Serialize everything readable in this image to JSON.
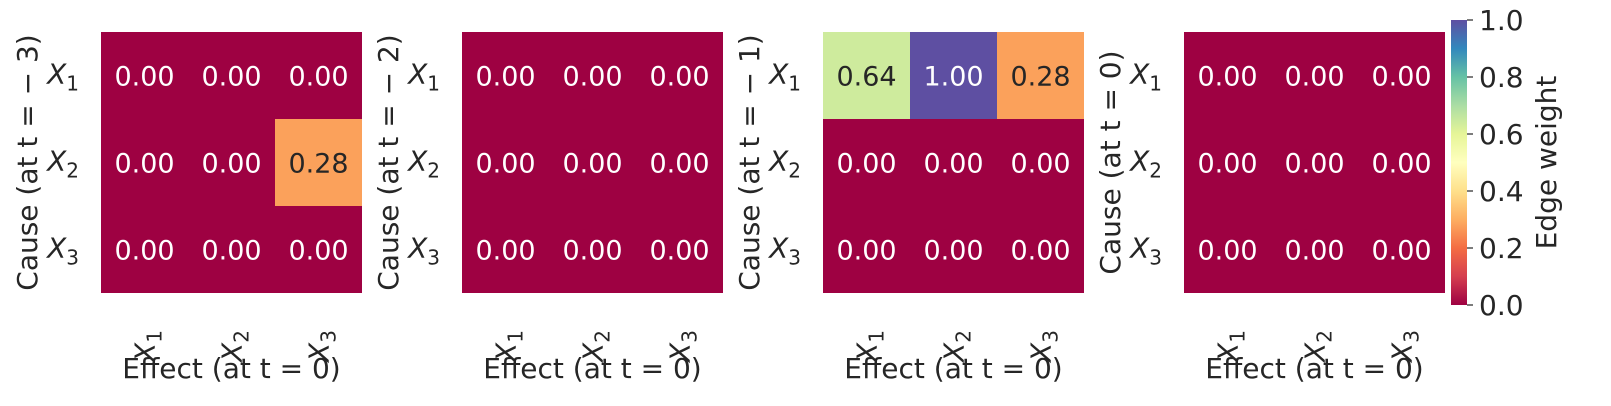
{
  "chart_data": [
    {
      "type": "heatmap",
      "ylabel": "Cause (at t = − 3)",
      "xlabel": "Effect (at t = 0)",
      "rows": [
        "X1",
        "X2",
        "X3"
      ],
      "cols": [
        "X1",
        "X2",
        "X3"
      ],
      "values": [
        [
          0.0,
          0.0,
          0.0
        ],
        [
          0.0,
          0.0,
          0.28
        ],
        [
          0.0,
          0.0,
          0.0
        ]
      ]
    },
    {
      "type": "heatmap",
      "ylabel": "Cause (at t = − 2)",
      "xlabel": "Effect (at t = 0)",
      "rows": [
        "X1",
        "X2",
        "X3"
      ],
      "cols": [
        "X1",
        "X2",
        "X3"
      ],
      "values": [
        [
          0.0,
          0.0,
          0.0
        ],
        [
          0.0,
          0.0,
          0.0
        ],
        [
          0.0,
          0.0,
          0.0
        ]
      ]
    },
    {
      "type": "heatmap",
      "ylabel": "Cause (at t = − 1)",
      "xlabel": "Effect (at t = 0)",
      "rows": [
        "X1",
        "X2",
        "X3"
      ],
      "cols": [
        "X1",
        "X2",
        "X3"
      ],
      "values": [
        [
          0.64,
          1.0,
          0.28
        ],
        [
          0.0,
          0.0,
          0.0
        ],
        [
          0.0,
          0.0,
          0.0
        ]
      ]
    },
    {
      "type": "heatmap",
      "ylabel": "Cause (at t = 0)",
      "xlabel": "Effect (at t = 0)",
      "rows": [
        "X1",
        "X2",
        "X3"
      ],
      "cols": [
        "X1",
        "X2",
        "X3"
      ],
      "values": [
        [
          0.0,
          0.0,
          0.0
        ],
        [
          0.0,
          0.0,
          0.0
        ],
        [
          0.0,
          0.0,
          0.0
        ]
      ]
    }
  ],
  "colorbar": {
    "label": "Edge weight",
    "range": [
      0.0,
      1.0
    ],
    "ticks": [
      "0.0",
      "0.2",
      "0.4",
      "0.6",
      "0.8",
      "1.0"
    ],
    "colormap": "Spectral",
    "colors": {
      "0.0": "#9e0142",
      "0.1": "#d53e4f",
      "0.2": "#f46d43",
      "0.3": "#fdae61",
      "0.4": "#fee08b",
      "0.5": "#ffffbf",
      "0.6": "#e6f598",
      "0.7": "#abdda4",
      "0.8": "#66c2a5",
      "0.9": "#3288bd",
      "1.0": "#5e4fa2"
    }
  }
}
